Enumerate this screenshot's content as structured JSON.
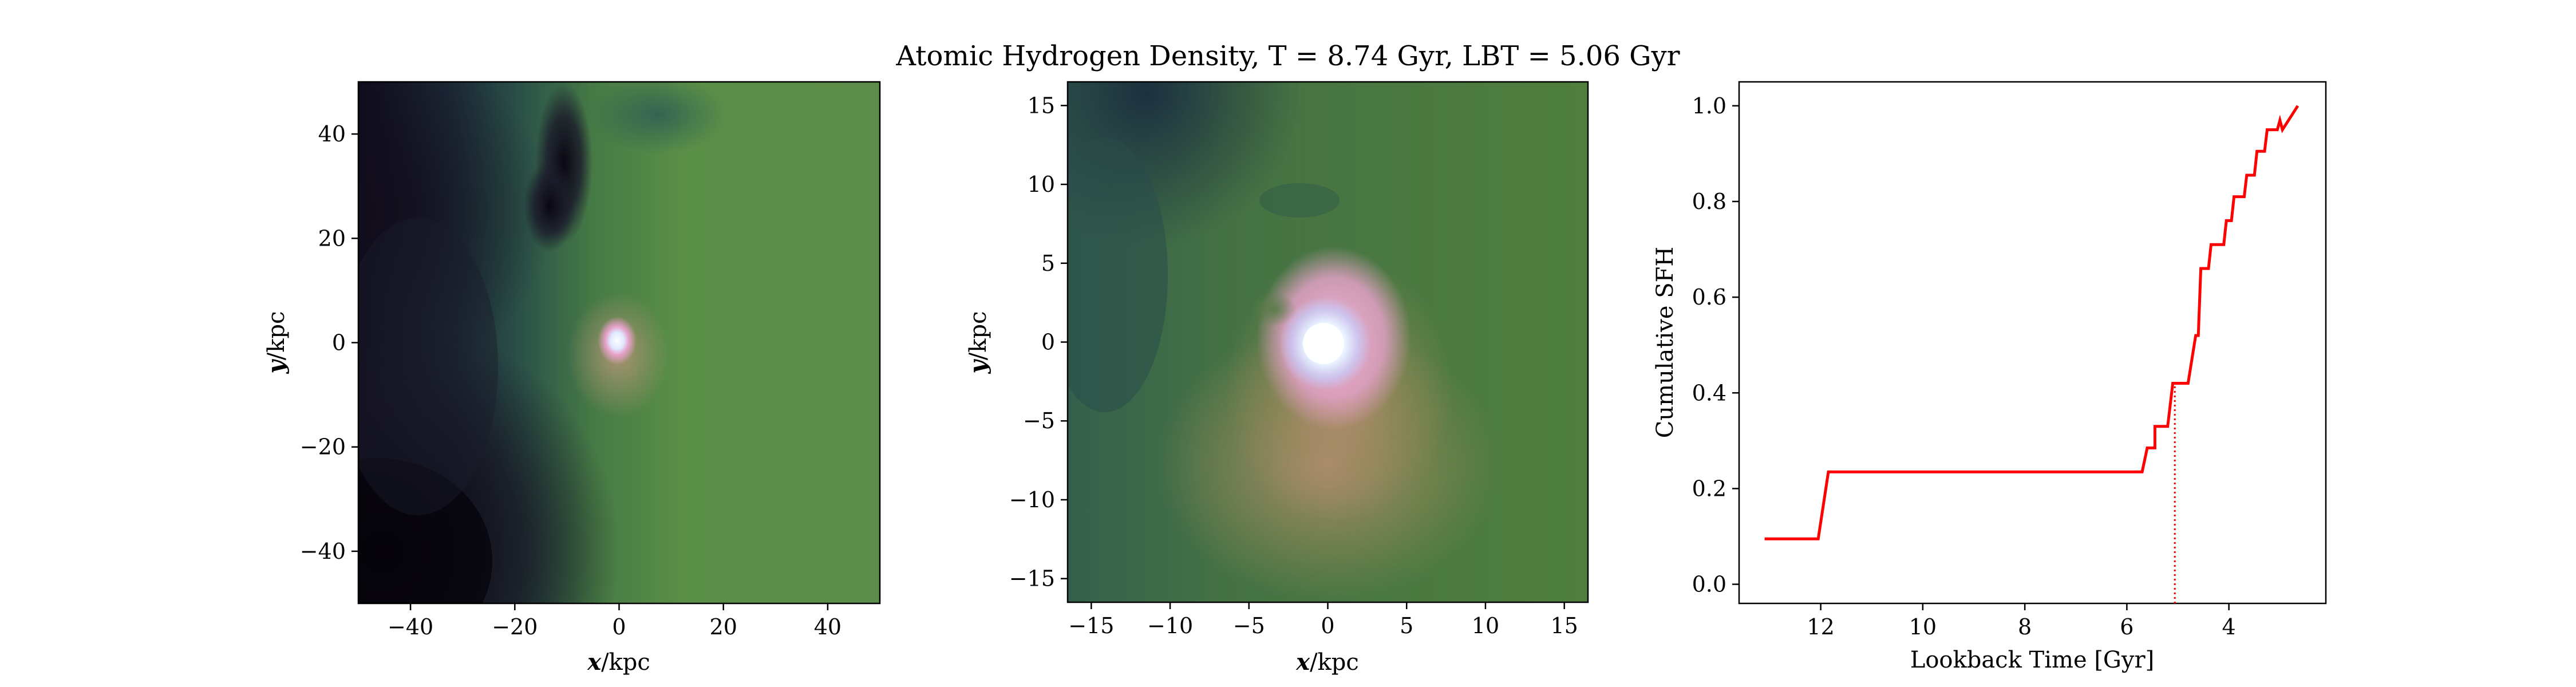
{
  "figure": {
    "title": "Atomic Hydrogen Density, T = 8.74 Gyr, LBT = 5.06 Gyr"
  },
  "chart_data": [
    {
      "type": "heatmap",
      "panel": "wide-view",
      "title": "",
      "xlabel": "x / kpc",
      "ylabel": "y / kpc",
      "xlim": [
        -50,
        50
      ],
      "ylim": [
        -50,
        50
      ],
      "xticks": [
        -40,
        -20,
        0,
        20,
        40
      ],
      "yticks": [
        -40,
        -20,
        0,
        20,
        40
      ],
      "xtick_labels": [
        "−40",
        "−20",
        "0",
        "20",
        "40"
      ],
      "ytick_labels": [
        "−40",
        "−20",
        "0",
        "20",
        "40"
      ],
      "colormap": "cubehelix",
      "colors": {
        "dark": "#0d0818",
        "mid": "#2e5a4f",
        "green": "#5f9148",
        "hot": "#d98fb5",
        "core": "#f2f8ff"
      },
      "features": [
        {
          "name": "bright-core",
          "x": 0,
          "y": 0,
          "radius": 4
        },
        {
          "name": "dark-filament",
          "x": -11,
          "y": 35,
          "radius": 10
        }
      ]
    },
    {
      "type": "heatmap",
      "panel": "zoom-view",
      "title": "",
      "xlabel": "x / kpc",
      "ylabel": "y / kpc",
      "xlim": [
        -16.5,
        16.5
      ],
      "ylim": [
        -16.5,
        16.5
      ],
      "xticks": [
        -15,
        -10,
        -5,
        0,
        5,
        10,
        15
      ],
      "yticks": [
        -15,
        -10,
        -5,
        0,
        5,
        10,
        15
      ],
      "xtick_labels": [
        "−15",
        "−10",
        "−5",
        "0",
        "5",
        "10",
        "15"
      ],
      "ytick_labels": [
        "−15",
        "−10",
        "−5",
        "0",
        "5",
        "10",
        "15"
      ],
      "colormap": "cubehelix",
      "colors": {
        "dark": "#233f44",
        "green": "#4f7f3e",
        "pink": "#e9a2c8",
        "core": "#f6fbff"
      },
      "features": [
        {
          "name": "bright-core",
          "x": 0.2,
          "y": 0.1,
          "radius": 2.5
        },
        {
          "name": "pink-halo",
          "x": -0.5,
          "y": 0.3,
          "radius": 5.5
        }
      ]
    },
    {
      "type": "line",
      "panel": "sfh",
      "title": "",
      "xlabel": "Lookback Time [Gyr]",
      "ylabel": "Cumulative SFH",
      "xlim": [
        13.6,
        2.1
      ],
      "ylim": [
        -0.04,
        1.05
      ],
      "xticks": [
        12,
        10,
        8,
        6,
        4
      ],
      "yticks": [
        0.0,
        0.2,
        0.4,
        0.6,
        0.8,
        1.0
      ],
      "xtick_labels": [
        "12",
        "10",
        "8",
        "6",
        "4"
      ],
      "ytick_labels": [
        "0.0",
        "0.2",
        "0.4",
        "0.6",
        "0.8",
        "1.0"
      ],
      "line_color": "#ff0000",
      "series": [
        {
          "x": [
            13.1,
            12.05,
            11.85,
            5.7,
            5.6,
            5.45,
            5.45,
            5.2,
            5.1,
            4.8,
            4.65,
            4.6,
            4.55,
            4.4,
            4.35,
            4.1,
            4.05,
            3.95,
            3.9,
            3.7,
            3.65,
            3.5,
            3.45,
            3.3,
            3.25,
            3.05,
            3.0,
            2.95,
            2.65
          ],
          "y": [
            0.095,
            0.095,
            0.235,
            0.235,
            0.285,
            0.285,
            0.33,
            0.33,
            0.42,
            0.42,
            0.52,
            0.52,
            0.66,
            0.66,
            0.71,
            0.71,
            0.76,
            0.76,
            0.81,
            0.81,
            0.855,
            0.855,
            0.905,
            0.905,
            0.95,
            0.95,
            0.97,
            0.95,
            1.0
          ]
        }
      ],
      "vline": {
        "x": 5.06,
        "ymax": 0.42,
        "style": "dotted"
      }
    }
  ]
}
